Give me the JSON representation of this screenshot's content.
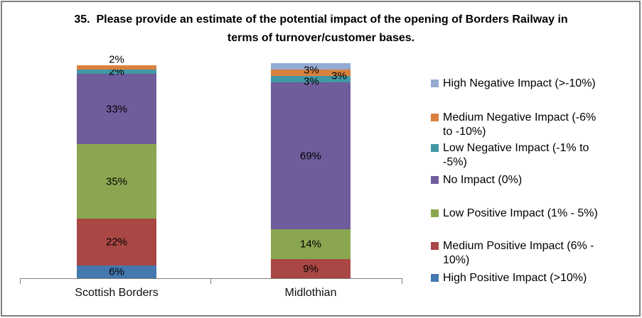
{
  "chart_data": {
    "type": "bar",
    "stacked": true,
    "title": "35.  Please provide an estimate of the potential impact of the opening of Borders Railway in terms of turnover/customer bases.",
    "categories": [
      "Scottish Borders",
      "Midlothian"
    ],
    "series": [
      {
        "name": "High Positive Impact (>10%)",
        "color": "#4478AE",
        "values": [
          6,
          0
        ]
      },
      {
        "name": "Medium Positive Impact (6% - 10%)",
        "color": "#A94744",
        "values": [
          22,
          9
        ]
      },
      {
        "name": "Low Positive Impact (1% - 5%)",
        "color": "#8BA650",
        "values": [
          35,
          14
        ]
      },
      {
        "name": "No Impact (0%)",
        "color": "#6F5C9B",
        "values": [
          33,
          69
        ]
      },
      {
        "name": "Low Negative Impact (-1% to -5%)",
        "color": "#4298A5",
        "values": [
          2,
          3
        ]
      },
      {
        "name": "Medium Negative Impact (-6% to -10%)",
        "color": "#D9813F",
        "values": [
          2,
          3
        ]
      },
      {
        "name": "High Negative Impact (>-10%)",
        "color": "#95ABD2",
        "values": [
          0,
          3
        ]
      }
    ],
    "value_suffix": "%",
    "data_labels": true,
    "ylim": [
      0,
      100
    ],
    "gridlines": false,
    "y_axis_visible": false,
    "legend_position": "right",
    "legend_order_top_to_bottom": [
      "High Negative Impact (>-10%)",
      "Medium Negative Impact (-6% to -10%)",
      "Low Negative Impact (-1% to -5%)",
      "No Impact (0%)",
      "Low Positive Impact (1% - 5%)",
      "Medium Positive Impact (6% - 10%)",
      "High Positive Impact (>10%)"
    ],
    "colors": {
      "axis_line": "#808080",
      "frame_border": "#7F7F7F",
      "background": "#FFFFFF",
      "label_text": "#000000"
    }
  }
}
